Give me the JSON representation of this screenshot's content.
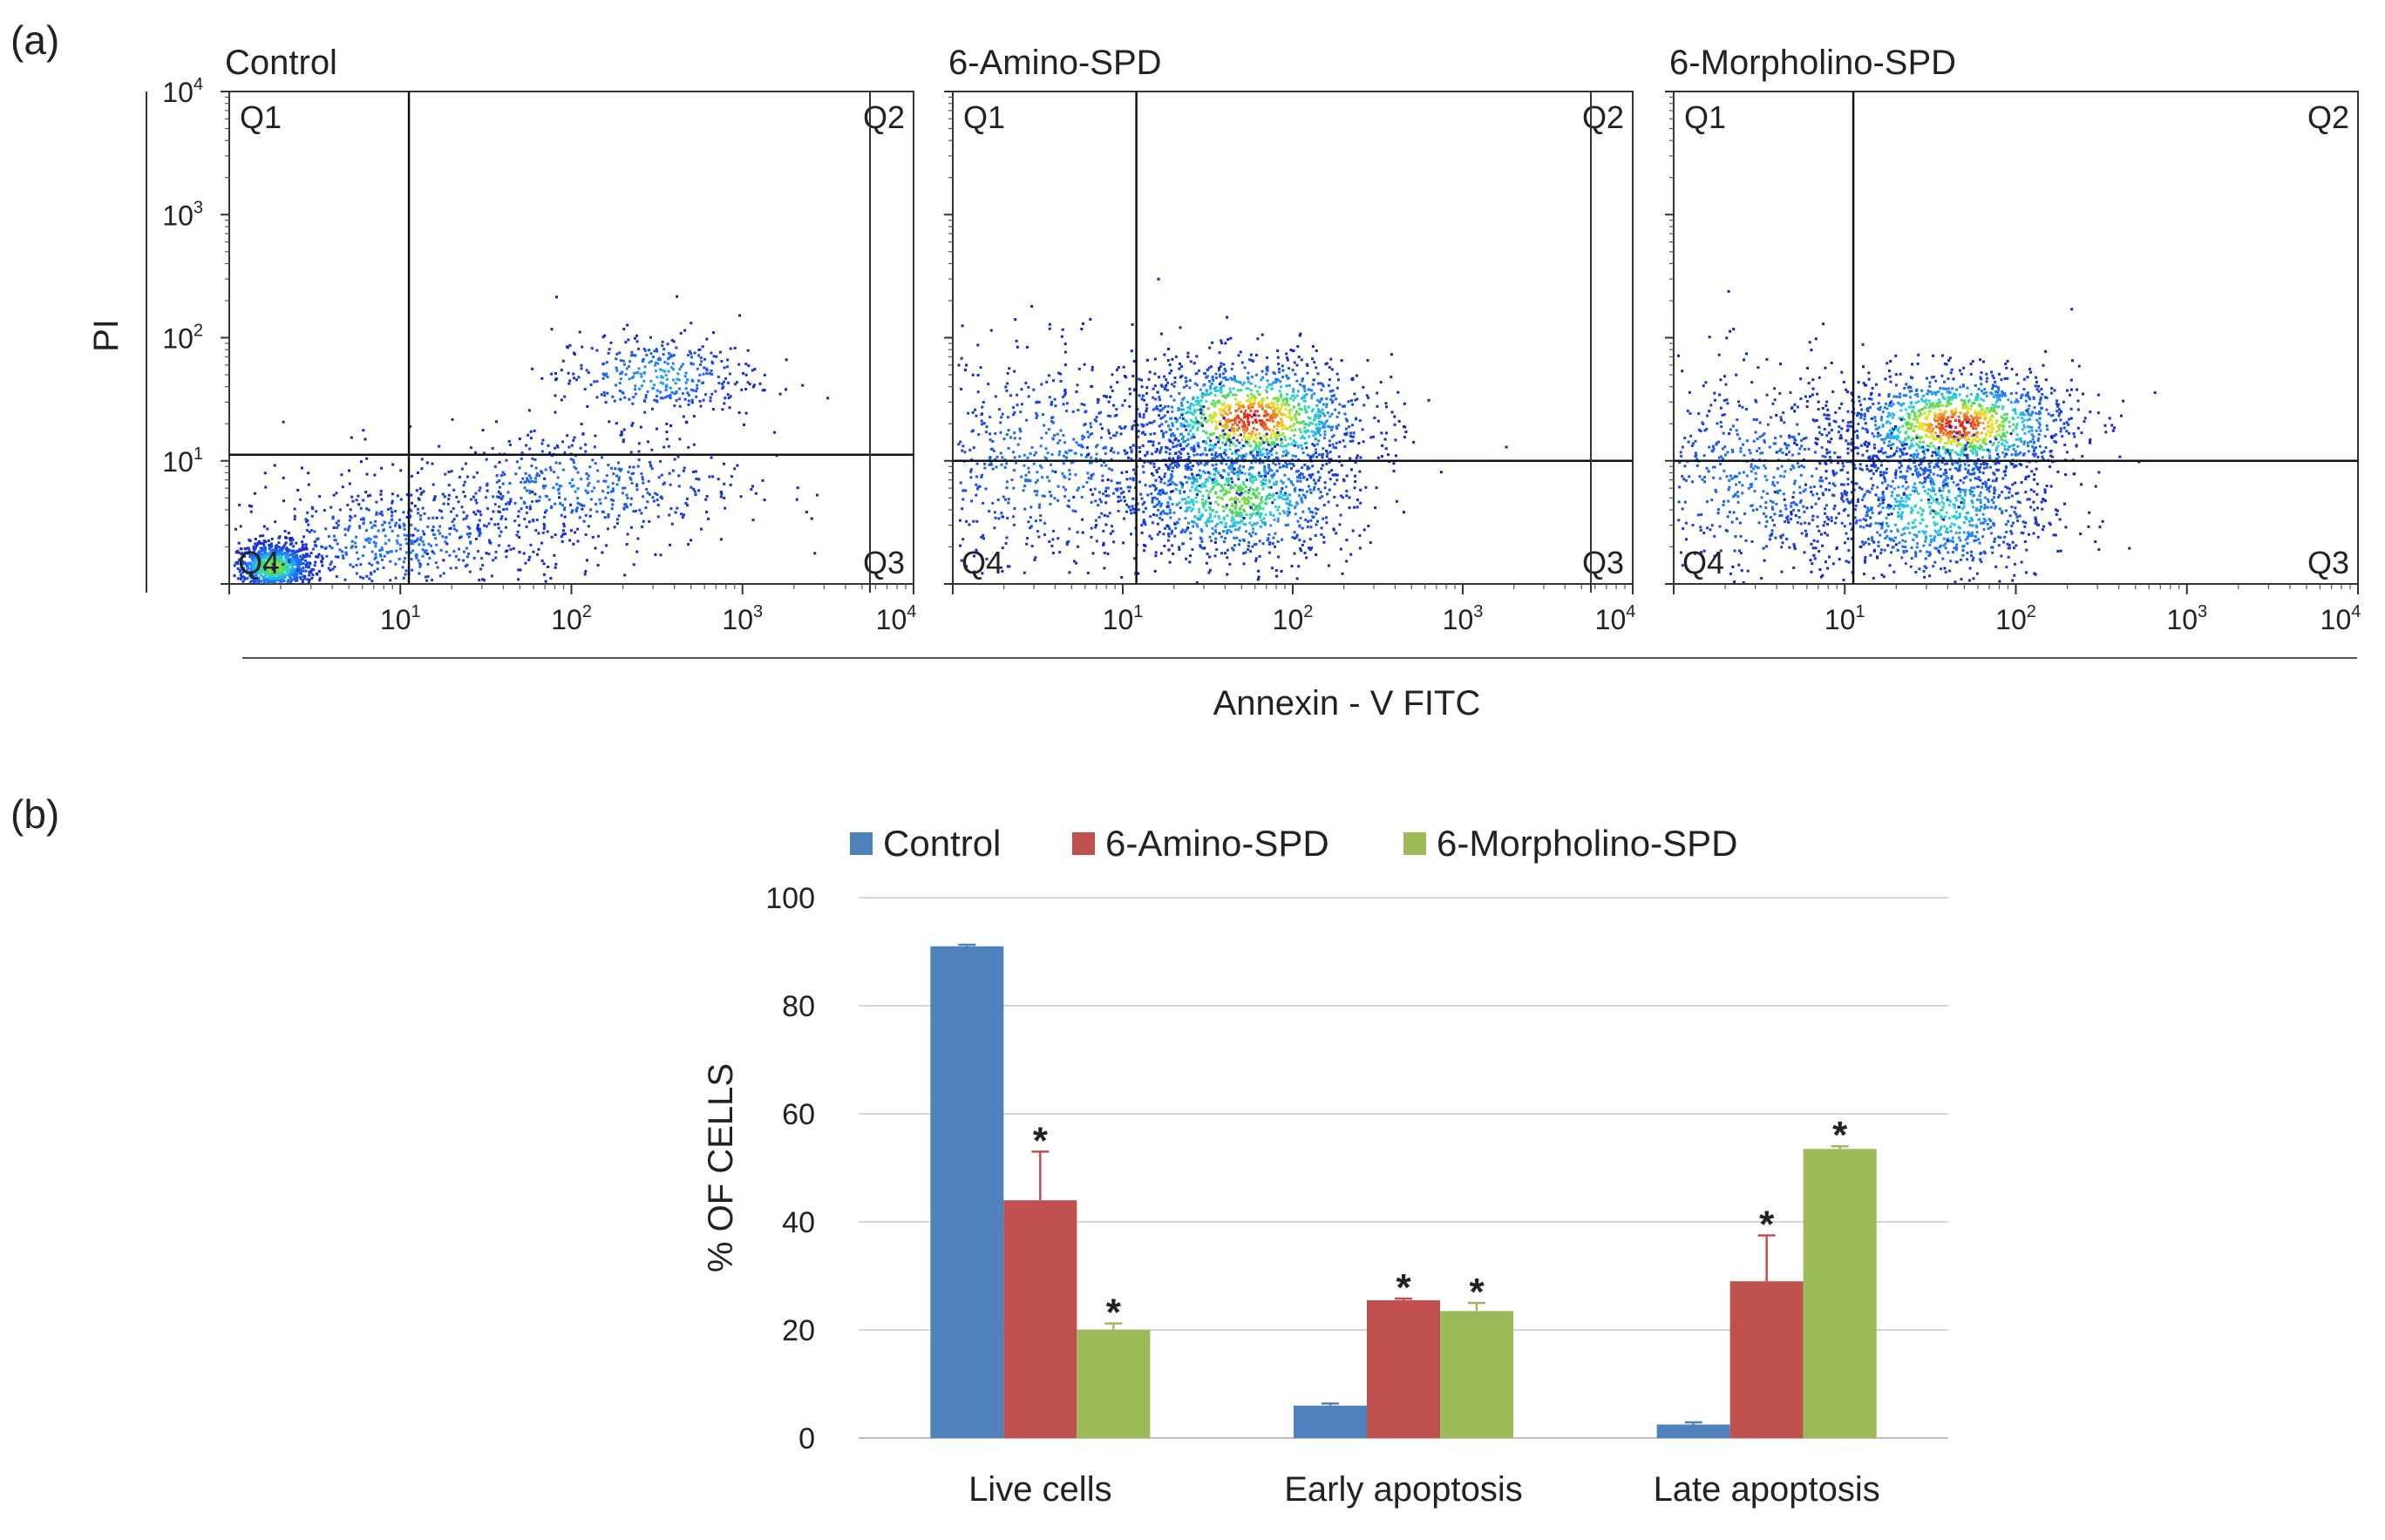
{
  "panel_a_label": "(a)",
  "panel_b_label": "(b)",
  "flow": {
    "y_axis_label": "PI",
    "x_axis_label": "Annexin - V FITC",
    "tick_base": "10",
    "tick_exps": [
      "1",
      "2",
      "3",
      "4"
    ],
    "quadrants": [
      "Q1",
      "Q2",
      "Q3",
      "Q4"
    ],
    "plots": [
      {
        "title": "Control",
        "gate_x": 1.05,
        "gate_y": 1.05
      },
      {
        "title": "6-Amino-SPD",
        "gate_x": 1.08,
        "gate_y": 1.0
      },
      {
        "title": "6-Morpholino-SPD",
        "gate_x": 1.05,
        "gate_y": 1.0
      }
    ]
  },
  "colors": {
    "control": "#4f81bd",
    "amino": "#c0504d",
    "morpholino": "#9bbb59"
  },
  "chart_data": {
    "type": "bar",
    "title": "",
    "xlabel": "",
    "ylabel": "% OF CELLS",
    "ylim": [
      0,
      100
    ],
    "yticks": [
      "0",
      "20",
      "40",
      "60",
      "80",
      "100"
    ],
    "grid": true,
    "legend": "top",
    "categories": [
      "Live cells",
      "Early apoptosis",
      "Late apoptosis"
    ],
    "series": [
      {
        "name": "Control",
        "values": [
          91,
          6,
          2.5
        ],
        "errors": [
          0.3,
          0.4,
          0.4
        ]
      },
      {
        "name": "6-Amino-SPD",
        "values": [
          44,
          25.5,
          29
        ],
        "errors": [
          9,
          0.3,
          8.5
        ]
      },
      {
        "name": "6-Morpholino-SPD",
        "values": [
          20,
          23.5,
          53.5
        ],
        "errors": [
          1.2,
          1.5,
          0.5
        ]
      }
    ],
    "annotations": [
      {
        "series": 1,
        "category": 0,
        "text": "*"
      },
      {
        "series": 2,
        "category": 0,
        "text": "*"
      },
      {
        "series": 1,
        "category": 1,
        "text": "*"
      },
      {
        "series": 2,
        "category": 1,
        "text": "*"
      },
      {
        "series": 1,
        "category": 2,
        "text": "*"
      },
      {
        "series": 2,
        "category": 2,
        "text": "*"
      }
    ]
  }
}
